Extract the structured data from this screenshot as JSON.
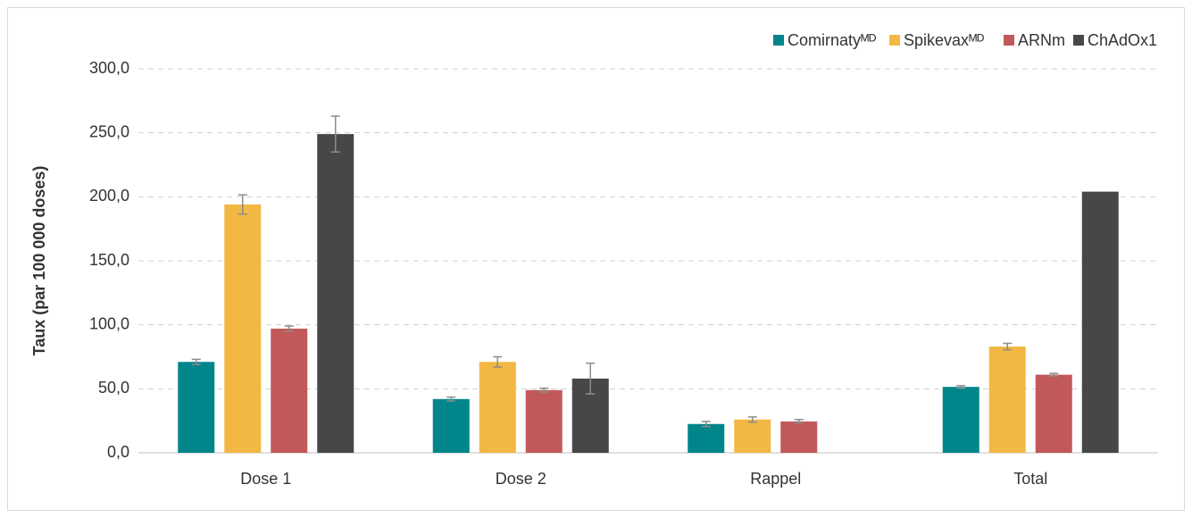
{
  "chart_data": {
    "type": "bar",
    "y_label": "Taux (par 100 000 doses)",
    "categories": [
      "Dose 1",
      "Dose 2",
      "Rappel",
      "Total"
    ],
    "series": [
      {
        "name": "Comirnatyᴹᴰ",
        "color": "#00858a",
        "values": [
          71,
          42,
          22.5,
          51.5
        ],
        "errors": [
          2,
          1.5,
          2,
          1
        ]
      },
      {
        "name": "Spikevaxᴹᴰ",
        "color": "#f2b843",
        "values": [
          194,
          71,
          26,
          83
        ],
        "errors": [
          7.5,
          4,
          2,
          2.5
        ]
      },
      {
        "name": "ARNm",
        "color": "#c25959",
        "values": [
          97,
          49,
          24.5,
          61
        ],
        "errors": [
          2,
          1.5,
          1.5,
          1
        ]
      },
      {
        "name": "ChAdOx1",
        "color": "#474747",
        "values": [
          249,
          58,
          null,
          204
        ],
        "errors": [
          14,
          12,
          null,
          null
        ]
      }
    ],
    "ylim": [
      0,
      300
    ],
    "yticks": [
      {
        "value": 0,
        "label": "0,0"
      },
      {
        "value": 50,
        "label": "50,0"
      },
      {
        "value": 100,
        "label": "100,0"
      },
      {
        "value": 150,
        "label": "150,0"
      },
      {
        "value": 200,
        "label": "200,0"
      },
      {
        "value": 250,
        "label": "250,0"
      },
      {
        "value": 300,
        "label": "300,0"
      }
    ],
    "grid": true,
    "legend": "top-right"
  }
}
